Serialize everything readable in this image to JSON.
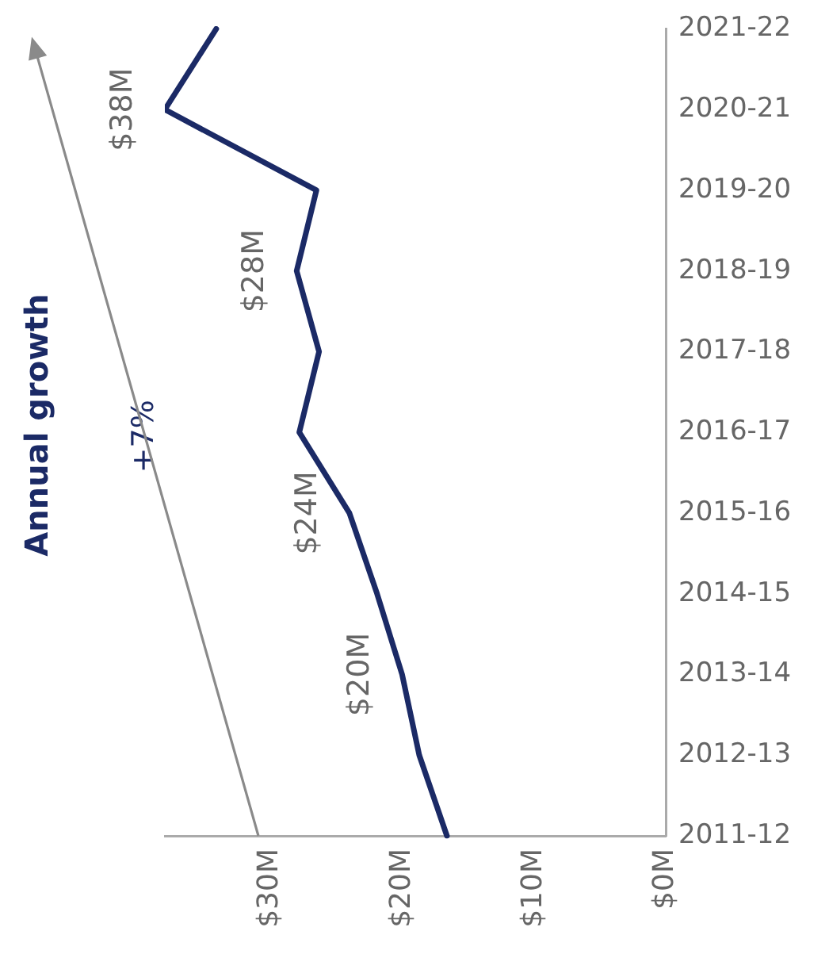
{
  "chart_data": {
    "type": "line",
    "orientation": "horizontal",
    "title": "Annual growth",
    "annotations": [
      "+7%"
    ],
    "categories": [
      "2021-22",
      "2020-21",
      "2019-20",
      "2018-19",
      "2017-18",
      "2016-17",
      "2015-16",
      "2014-15",
      "2013-14",
      "2012-13",
      "2011-12"
    ],
    "series": [
      {
        "color": "#1b2a66",
        "values": [
          34.1,
          38,
          26.5,
          28,
          26.3,
          27.8,
          24,
          21.9,
          20,
          18.7,
          16.6
        ],
        "value_labels": [
          null,
          "$38M",
          null,
          "$28M",
          null,
          null,
          "$24M",
          null,
          "$20M",
          null,
          null
        ]
      }
    ],
    "xlim": [
      38,
      0
    ],
    "xticks": [
      {
        "value": 30,
        "label": "$30M"
      },
      {
        "value": 20,
        "label": "$20M"
      },
      {
        "value": 10,
        "label": "$10M"
      },
      {
        "value": 0,
        "label": "$0M"
      }
    ],
    "grid": false,
    "legend": false,
    "marker": "none",
    "line_style": "solid"
  }
}
